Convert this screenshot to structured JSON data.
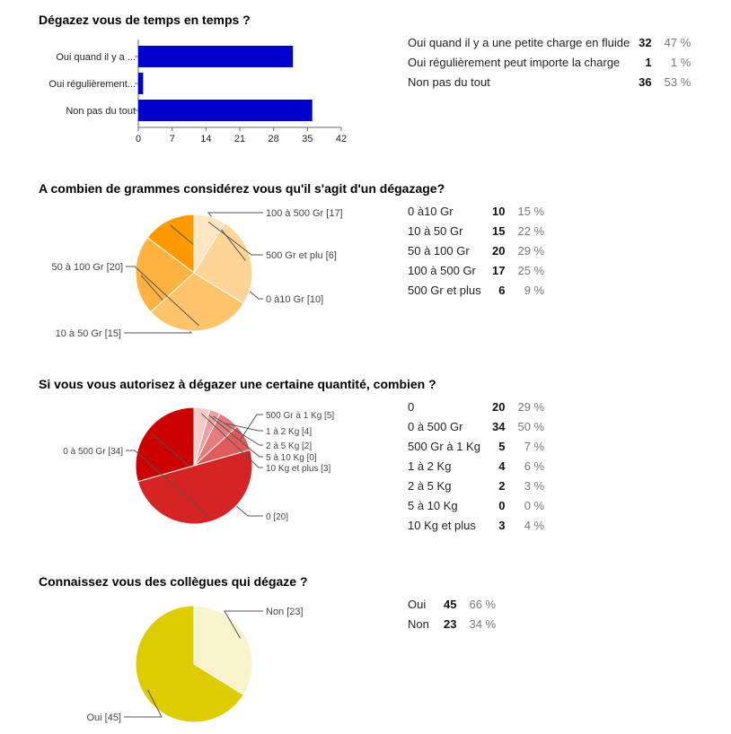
{
  "questions": [
    {
      "title": "Dégazez vous de temps en temps ?",
      "stats": [
        {
          "label": "Oui quand il y a une petite charge en fluide",
          "count": "32",
          "pct": "47 %"
        },
        {
          "label": "Oui régulièrement peut importe la charge",
          "count": "1",
          "pct": "1 %"
        },
        {
          "label": "Non pas du tout",
          "count": "36",
          "pct": "53 %"
        }
      ]
    },
    {
      "title": "A combien de grammes considérez vous qu'il s'agit d'un dégazage?",
      "stats": [
        {
          "label": "0 à10 Gr",
          "count": "10",
          "pct": "15 %"
        },
        {
          "label": "10 à 50 Gr",
          "count": "15",
          "pct": "22 %"
        },
        {
          "label": "50 à 100 Gr",
          "count": "20",
          "pct": "29 %"
        },
        {
          "label": "100 à 500 Gr",
          "count": "17",
          "pct": "25 %"
        },
        {
          "label": "500 Gr et plus",
          "count": "6",
          "pct": "9 %"
        }
      ]
    },
    {
      "title": "Si vous vous autorisez à dégazer une certaine quantité, combien ?",
      "stats": [
        {
          "label": "0",
          "count": "20",
          "pct": "29 %"
        },
        {
          "label": "0 à 500 Gr",
          "count": "34",
          "pct": "50 %"
        },
        {
          "label": "500 Gr à 1 Kg",
          "count": "5",
          "pct": "7 %"
        },
        {
          "label": "1 à 2 Kg",
          "count": "4",
          "pct": "6 %"
        },
        {
          "label": "2 à 5 Kg",
          "count": "2",
          "pct": "3 %"
        },
        {
          "label": "5 à 10 Kg",
          "count": "0",
          "pct": "0 %"
        },
        {
          "label": "10 Kg et plus",
          "count": "3",
          "pct": "4 %"
        }
      ]
    },
    {
      "title": "Connaissez vous des collègues qui dégaze ?",
      "stats": [
        {
          "label": "Oui",
          "count": "45",
          "pct": "66 %"
        },
        {
          "label": "Non",
          "count": "23",
          "pct": "34 %"
        }
      ]
    }
  ],
  "chart_data": [
    {
      "type": "bar",
      "orientation": "horizontal",
      "categories": [
        "Oui quand il y a ...",
        "Oui régulièrement...",
        "Non pas du tout"
      ],
      "values": [
        32,
        1,
        36
      ],
      "xlim": [
        0,
        42
      ],
      "xticks": [
        "0",
        "7",
        "14",
        "21",
        "28",
        "35",
        "42"
      ],
      "color": "#0000cc"
    },
    {
      "type": "pie",
      "slices": [
        {
          "label": "0 à10 Gr [10]",
          "value": 10,
          "color": "#ff9900"
        },
        {
          "label": "10 à 50 Gr [15]",
          "value": 15,
          "color": "#ffb23f"
        },
        {
          "label": "50 à 100 Gr [20]",
          "value": 20,
          "color": "#ffc36c"
        },
        {
          "label": "100 à 500 Gr [17]",
          "value": 17,
          "color": "#ffd597"
        },
        {
          "label": "500 Gr et plu [6]",
          "value": 6,
          "color": "#ffe6c2"
        }
      ]
    },
    {
      "type": "pie",
      "slices": [
        {
          "label": "0 [20]",
          "value": 20,
          "color": "#cc0000"
        },
        {
          "label": "0 à 500 Gr [34]",
          "value": 34,
          "color": "#d62424"
        },
        {
          "label": "500 Gr à 1 Kg [5]",
          "value": 5,
          "color": "#e05a5a"
        },
        {
          "label": "1 à 2 Kg [4]",
          "value": 4,
          "color": "#e87c7c"
        },
        {
          "label": "2 à 5 Kg [2]",
          "value": 2,
          "color": "#ef9f9f"
        },
        {
          "label": "5 à 10 Kg [0]",
          "value": 0,
          "color": "#f4b7b7"
        },
        {
          "label": "10 Kg et plus [3]",
          "value": 3,
          "color": "#f7caca"
        }
      ]
    },
    {
      "type": "pie",
      "slices": [
        {
          "label": "Oui [45]",
          "value": 45,
          "color": "#ddcc00"
        },
        {
          "label": "Non [23]",
          "value": 23,
          "color": "#f8f3cc"
        }
      ]
    }
  ]
}
